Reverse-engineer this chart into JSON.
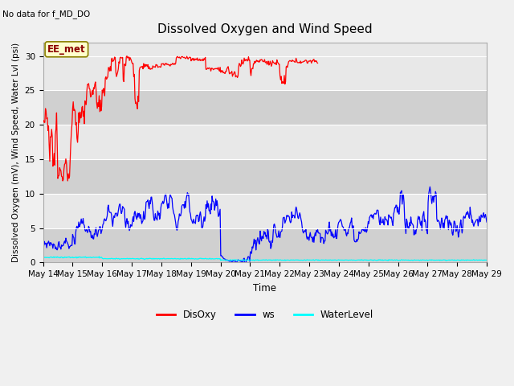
{
  "title": "Dissolved Oxygen and Wind Speed",
  "subtitle": "No data for f_MD_DO",
  "xlabel": "Time",
  "ylabel": "Dissolved Oxygen (mV), Wind Speed, Water Lvl (psi)",
  "annotation": "EE_met",
  "ylim": [
    0,
    32
  ],
  "yticks": [
    0,
    5,
    10,
    15,
    20,
    25,
    30
  ],
  "x_labels": [
    "May 14",
    "May 15",
    "May 16",
    "May 17",
    "May 18",
    "May 19",
    "May 20",
    "May 21",
    "May 22",
    "May 23",
    "May 24",
    "May 25",
    "May 26",
    "May 27",
    "May 28",
    "May 29"
  ],
  "fig_bg_color": "#f0f0f0",
  "plot_bg_light": "#e8e8e8",
  "plot_bg_dark": "#d0d0d0",
  "legend_labels": [
    "DisOxy",
    "ws",
    "WaterLevel"
  ],
  "legend_colors": [
    "red",
    "blue",
    "cyan"
  ],
  "n_days": 15
}
